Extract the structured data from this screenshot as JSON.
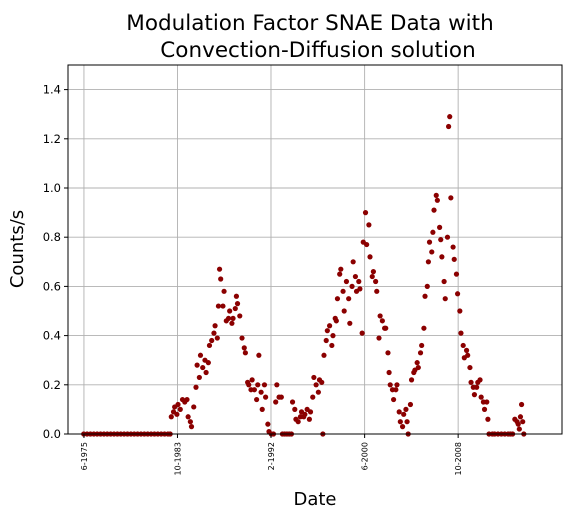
{
  "chart_data": {
    "type": "scatter",
    "title_lines": [
      "Modulation Factor SNAE Data with",
      "Convection-Diffusion solution"
    ],
    "xlabel": "Date",
    "ylabel": "Counts/s",
    "ylim": [
      0,
      1.5
    ],
    "yticks": [
      "0.0",
      "0.2",
      "0.4",
      "0.6",
      "0.8",
      "1.0",
      "1.2",
      "1.4"
    ],
    "xticks": [
      {
        "label": "6-1975",
        "x": 1975.42
      },
      {
        "label": "10-1983",
        "x": 1983.75
      },
      {
        "label": "2-1992",
        "x": 1992.08
      },
      {
        "label": "6-2000",
        "x": 2000.42
      },
      {
        "label": "10-2008",
        "x": 2008.75
      }
    ],
    "xlim": [
      1974.0,
      2018.0
    ],
    "grid": true,
    "marker_color": "#8b0000",
    "series": [
      {
        "points": [
          [
            1975.4,
            0.0
          ],
          [
            1975.7,
            0.0
          ],
          [
            1976.0,
            0.0
          ],
          [
            1976.3,
            0.0
          ],
          [
            1976.6,
            0.0
          ],
          [
            1976.9,
            0.0
          ],
          [
            1977.2,
            0.0
          ],
          [
            1977.5,
            0.0
          ],
          [
            1977.8,
            0.0
          ],
          [
            1978.1,
            0.0
          ],
          [
            1978.4,
            0.0
          ],
          [
            1978.7,
            0.0
          ],
          [
            1979.0,
            0.0
          ],
          [
            1979.3,
            0.0
          ],
          [
            1979.6,
            0.0
          ],
          [
            1979.9,
            0.0
          ],
          [
            1980.2,
            0.0
          ],
          [
            1980.5,
            0.0
          ],
          [
            1980.8,
            0.0
          ],
          [
            1981.1,
            0.0
          ],
          [
            1981.4,
            0.0
          ],
          [
            1981.7,
            0.0
          ],
          [
            1982.0,
            0.0
          ],
          [
            1982.3,
            0.0
          ],
          [
            1982.6,
            0.0
          ],
          [
            1982.9,
            0.0
          ],
          [
            1983.1,
            0.0
          ],
          [
            1983.2,
            0.07
          ],
          [
            1983.4,
            0.09
          ],
          [
            1983.5,
            0.11
          ],
          [
            1983.7,
            0.08
          ],
          [
            1983.8,
            0.12
          ],
          [
            1984.0,
            0.1
          ],
          [
            1984.2,
            0.14
          ],
          [
            1984.4,
            0.13
          ],
          [
            1984.6,
            0.14
          ],
          [
            1984.7,
            0.07
          ],
          [
            1984.9,
            0.05
          ],
          [
            1985.0,
            0.03
          ],
          [
            1985.2,
            0.11
          ],
          [
            1985.4,
            0.19
          ],
          [
            1985.5,
            0.28
          ],
          [
            1985.7,
            0.23
          ],
          [
            1985.8,
            0.32
          ],
          [
            1986.0,
            0.27
          ],
          [
            1986.2,
            0.3
          ],
          [
            1986.3,
            0.25
          ],
          [
            1986.5,
            0.29
          ],
          [
            1986.6,
            0.36
          ],
          [
            1986.8,
            0.38
          ],
          [
            1987.0,
            0.41
          ],
          [
            1987.1,
            0.44
          ],
          [
            1987.3,
            0.39
          ],
          [
            1987.4,
            0.52
          ],
          [
            1987.5,
            0.67
          ],
          [
            1987.6,
            0.63
          ],
          [
            1987.8,
            0.52
          ],
          [
            1987.9,
            0.58
          ],
          [
            1988.1,
            0.46
          ],
          [
            1988.3,
            0.47
          ],
          [
            1988.4,
            0.5
          ],
          [
            1988.6,
            0.45
          ],
          [
            1988.7,
            0.47
          ],
          [
            1988.9,
            0.51
          ],
          [
            1989.0,
            0.56
          ],
          [
            1989.1,
            0.53
          ],
          [
            1989.3,
            0.48
          ],
          [
            1989.5,
            0.39
          ],
          [
            1989.7,
            0.35
          ],
          [
            1989.8,
            0.33
          ],
          [
            1990.0,
            0.21
          ],
          [
            1990.1,
            0.2
          ],
          [
            1990.3,
            0.18
          ],
          [
            1990.4,
            0.22
          ],
          [
            1990.6,
            0.18
          ],
          [
            1990.8,
            0.14
          ],
          [
            1990.9,
            0.2
          ],
          [
            1991.0,
            0.32
          ],
          [
            1991.2,
            0.17
          ],
          [
            1991.3,
            0.1
          ],
          [
            1991.5,
            0.2
          ],
          [
            1991.6,
            0.15
          ],
          [
            1991.8,
            0.04
          ],
          [
            1991.9,
            0.01
          ],
          [
            1992.1,
            0.0
          ],
          [
            1992.3,
            0.0
          ],
          [
            1992.5,
            0.13
          ],
          [
            1992.6,
            0.2
          ],
          [
            1992.8,
            0.15
          ],
          [
            1993.0,
            0.15
          ],
          [
            1993.1,
            0.0
          ],
          [
            1993.3,
            0.0
          ],
          [
            1993.5,
            0.0
          ],
          [
            1993.7,
            0.0
          ],
          [
            1993.9,
            0.0
          ],
          [
            1994.0,
            0.13
          ],
          [
            1994.2,
            0.1
          ],
          [
            1994.3,
            0.06
          ],
          [
            1994.5,
            0.05
          ],
          [
            1994.7,
            0.07
          ],
          [
            1994.8,
            0.09
          ],
          [
            1995.0,
            0.07
          ],
          [
            1995.1,
            0.08
          ],
          [
            1995.3,
            0.1
          ],
          [
            1995.5,
            0.06
          ],
          [
            1995.6,
            0.09
          ],
          [
            1995.8,
            0.15
          ],
          [
            1995.9,
            0.23
          ],
          [
            1996.1,
            0.2
          ],
          [
            1996.3,
            0.17
          ],
          [
            1996.4,
            0.22
          ],
          [
            1996.6,
            0.21
          ],
          [
            1996.7,
            0.0
          ],
          [
            1996.8,
            0.32
          ],
          [
            1997.0,
            0.38
          ],
          [
            1997.1,
            0.42
          ],
          [
            1997.3,
            0.44
          ],
          [
            1997.5,
            0.36
          ],
          [
            1997.6,
            0.4
          ],
          [
            1997.8,
            0.47
          ],
          [
            1997.9,
            0.46
          ],
          [
            1998.0,
            0.55
          ],
          [
            1998.2,
            0.65
          ],
          [
            1998.3,
            0.67
          ],
          [
            1998.5,
            0.58
          ],
          [
            1998.6,
            0.5
          ],
          [
            1998.8,
            0.62
          ],
          [
            1999.0,
            0.55
          ],
          [
            1999.1,
            0.45
          ],
          [
            1999.3,
            0.6
          ],
          [
            1999.4,
            0.7
          ],
          [
            1999.6,
            0.64
          ],
          [
            1999.7,
            0.58
          ],
          [
            1999.9,
            0.62
          ],
          [
            2000.0,
            0.59
          ],
          [
            2000.2,
            0.41
          ],
          [
            2000.3,
            0.78
          ],
          [
            2000.5,
            0.9
          ],
          [
            2000.6,
            0.77
          ],
          [
            2000.8,
            0.85
          ],
          [
            2000.9,
            0.72
          ],
          [
            2001.1,
            0.64
          ],
          [
            2001.2,
            0.66
          ],
          [
            2001.4,
            0.62
          ],
          [
            2001.5,
            0.58
          ],
          [
            2001.7,
            0.39
          ],
          [
            2001.8,
            0.48
          ],
          [
            2002.0,
            0.46
          ],
          [
            2002.2,
            0.43
          ],
          [
            2002.3,
            0.43
          ],
          [
            2002.5,
            0.33
          ],
          [
            2002.6,
            0.25
          ],
          [
            2002.7,
            0.2
          ],
          [
            2002.9,
            0.18
          ],
          [
            2003.0,
            0.14
          ],
          [
            2003.2,
            0.18
          ],
          [
            2003.3,
            0.2
          ],
          [
            2003.5,
            0.09
          ],
          [
            2003.6,
            0.05
          ],
          [
            2003.8,
            0.03
          ],
          [
            2003.9,
            0.08
          ],
          [
            2004.1,
            0.1
          ],
          [
            2004.2,
            0.05
          ],
          [
            2004.3,
            0.0
          ],
          [
            2004.5,
            0.12
          ],
          [
            2004.6,
            0.22
          ],
          [
            2004.8,
            0.25
          ],
          [
            2004.9,
            0.26
          ],
          [
            2005.1,
            0.29
          ],
          [
            2005.2,
            0.27
          ],
          [
            2005.4,
            0.33
          ],
          [
            2005.5,
            0.36
          ],
          [
            2005.7,
            0.43
          ],
          [
            2005.8,
            0.56
          ],
          [
            2006.0,
            0.6
          ],
          [
            2006.1,
            0.7
          ],
          [
            2006.2,
            0.78
          ],
          [
            2006.4,
            0.74
          ],
          [
            2006.5,
            0.82
          ],
          [
            2006.6,
            0.91
          ],
          [
            2006.8,
            0.97
          ],
          [
            2006.9,
            0.95
          ],
          [
            2007.1,
            0.84
          ],
          [
            2007.2,
            0.79
          ],
          [
            2007.3,
            0.72
          ],
          [
            2007.5,
            0.62
          ],
          [
            2007.6,
            0.55
          ],
          [
            2007.8,
            0.8
          ],
          [
            2007.9,
            1.25
          ],
          [
            2008.0,
            1.29
          ],
          [
            2008.1,
            0.96
          ],
          [
            2008.3,
            0.76
          ],
          [
            2008.4,
            0.71
          ],
          [
            2008.6,
            0.65
          ],
          [
            2008.7,
            0.57
          ],
          [
            2008.9,
            0.5
          ],
          [
            2009.0,
            0.41
          ],
          [
            2009.2,
            0.36
          ],
          [
            2009.3,
            0.31
          ],
          [
            2009.5,
            0.34
          ],
          [
            2009.6,
            0.32
          ],
          [
            2009.8,
            0.27
          ],
          [
            2009.9,
            0.21
          ],
          [
            2010.1,
            0.19
          ],
          [
            2010.2,
            0.16
          ],
          [
            2010.4,
            0.19
          ],
          [
            2010.5,
            0.21
          ],
          [
            2010.7,
            0.22
          ],
          [
            2010.8,
            0.15
          ],
          [
            2011.0,
            0.13
          ],
          [
            2011.1,
            0.1
          ],
          [
            2011.3,
            0.13
          ],
          [
            2011.4,
            0.06
          ],
          [
            2011.5,
            0.0
          ],
          [
            2011.8,
            0.0
          ],
          [
            2012.0,
            0.0
          ],
          [
            2012.3,
            0.0
          ],
          [
            2012.6,
            0.0
          ],
          [
            2012.9,
            0.0
          ],
          [
            2013.2,
            0.0
          ],
          [
            2013.4,
            0.0
          ],
          [
            2013.6,
            0.0
          ],
          [
            2013.8,
            0.06
          ],
          [
            2014.0,
            0.05
          ],
          [
            2014.1,
            0.04
          ],
          [
            2014.2,
            0.02
          ],
          [
            2014.3,
            0.07
          ],
          [
            2014.4,
            0.12
          ],
          [
            2014.5,
            0.05
          ],
          [
            2014.6,
            0.0
          ]
        ]
      }
    ]
  }
}
